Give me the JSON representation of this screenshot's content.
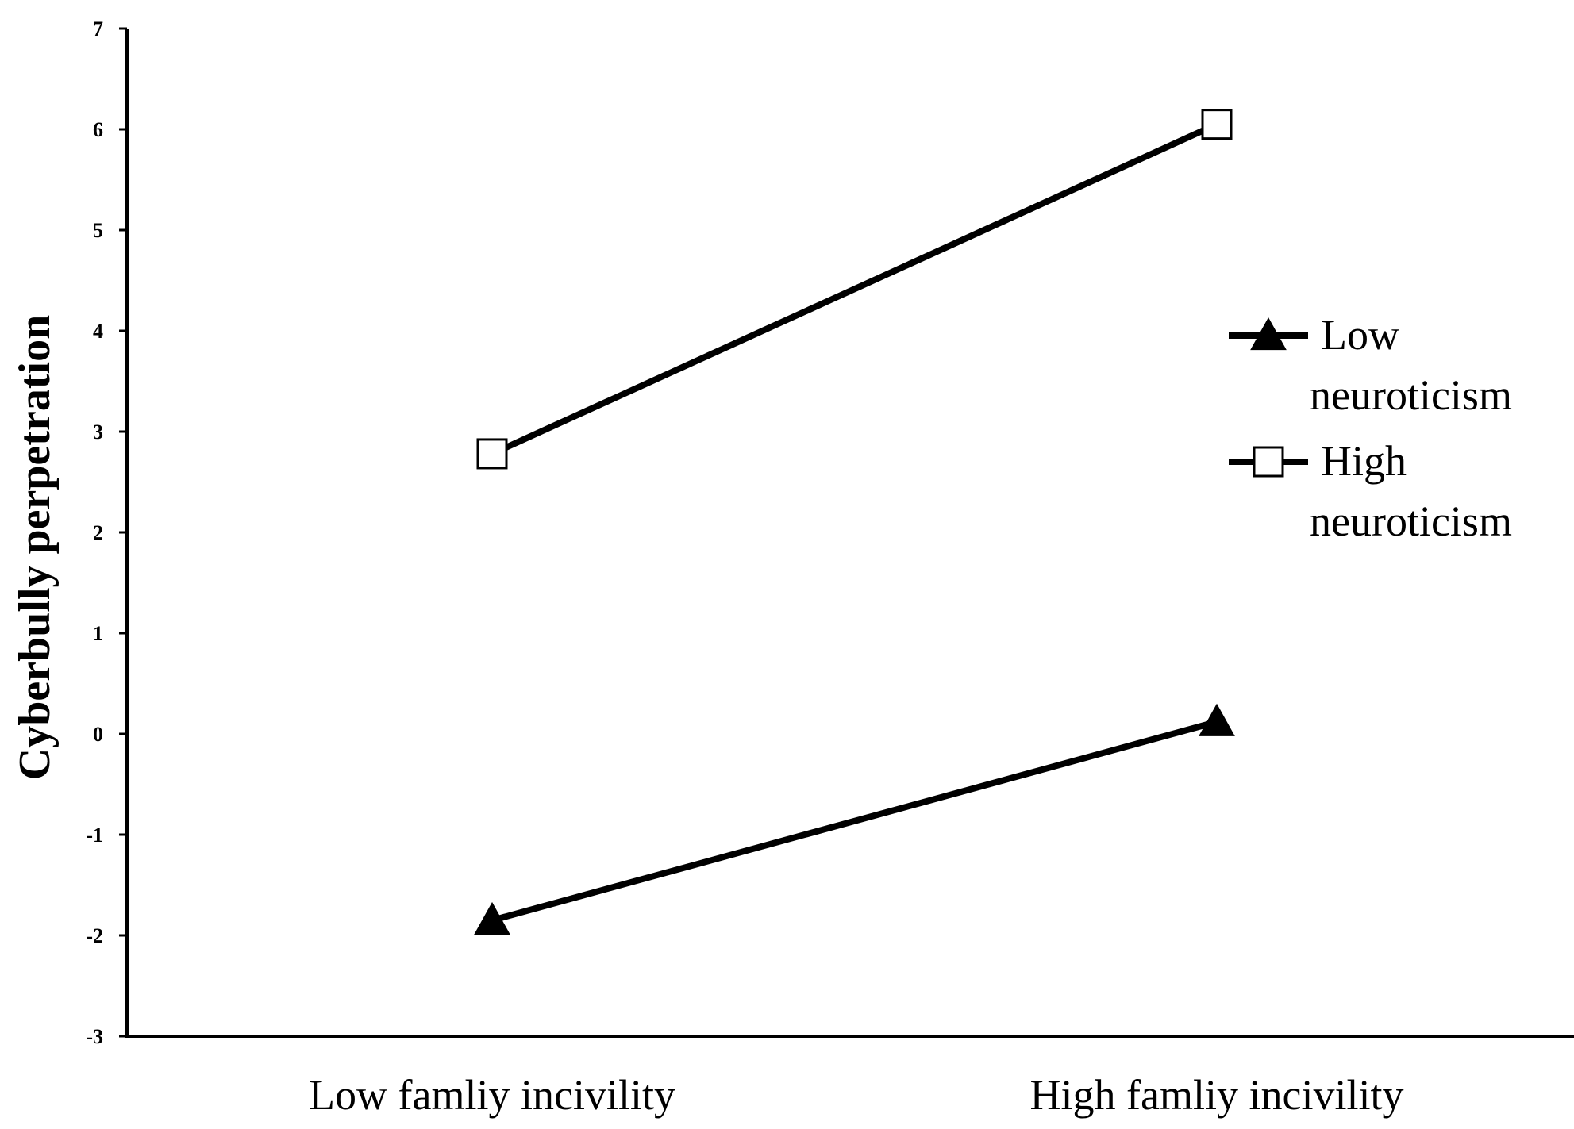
{
  "chart_data": {
    "type": "line",
    "title": "",
    "xlabel": "",
    "ylabel": "Cyberbully perpetration",
    "categories": [
      "Low famliy incivility",
      "High famliy incivility"
    ],
    "ylim": [
      -3,
      7
    ],
    "yticks": [
      -3,
      -2,
      -1,
      0,
      1,
      2,
      3,
      4,
      5,
      6,
      7
    ],
    "grid": false,
    "legend_position": "right",
    "series": [
      {
        "name_lines": [
          "Low",
          "neuroticism"
        ],
        "values": [
          -1.85,
          0.12
        ],
        "marker": "filled-triangle",
        "color": "#000000"
      },
      {
        "name_lines": [
          "High",
          "neuroticism"
        ],
        "values": [
          2.78,
          6.05
        ],
        "marker": "open-square",
        "color": "#000000"
      }
    ]
  }
}
